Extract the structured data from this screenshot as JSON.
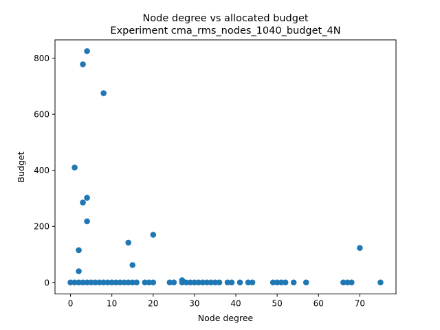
{
  "chart_data": {
    "type": "scatter",
    "title": "Node degree vs allocated budget",
    "subtitle": "Experiment cma_rms_nodes_1040_budget_4N",
    "xlabel": "Node degree",
    "ylabel": "Budget",
    "xlim": [
      -3.75,
      78.75
    ],
    "ylim": [
      -41.2,
      865.2
    ],
    "xticks": [
      0,
      10,
      20,
      30,
      40,
      50,
      60,
      70
    ],
    "yticks": [
      0,
      200,
      400,
      600,
      800
    ],
    "grid": false,
    "marker_color": "#1f77b4",
    "series": [
      {
        "points": [
          [
            0,
            0
          ],
          [
            1,
            0
          ],
          [
            1,
            410
          ],
          [
            2,
            0
          ],
          [
            2,
            40
          ],
          [
            2,
            115
          ],
          [
            3,
            0
          ],
          [
            3,
            285
          ],
          [
            3,
            778
          ],
          [
            4,
            0
          ],
          [
            4,
            218
          ],
          [
            4,
            302
          ],
          [
            4,
            825
          ],
          [
            5,
            0
          ],
          [
            6,
            0
          ],
          [
            7,
            0
          ],
          [
            8,
            0
          ],
          [
            8,
            675
          ],
          [
            9,
            0
          ],
          [
            10,
            0
          ],
          [
            11,
            0
          ],
          [
            12,
            0
          ],
          [
            13,
            0
          ],
          [
            14,
            0
          ],
          [
            14,
            142
          ],
          [
            15,
            0
          ],
          [
            15,
            62
          ],
          [
            16,
            0
          ],
          [
            18,
            0
          ],
          [
            19,
            0
          ],
          [
            20,
            0
          ],
          [
            20,
            170
          ],
          [
            24,
            0
          ],
          [
            25,
            0
          ],
          [
            27,
            0
          ],
          [
            27,
            8
          ],
          [
            28,
            0
          ],
          [
            29,
            0
          ],
          [
            30,
            0
          ],
          [
            31,
            0
          ],
          [
            32,
            0
          ],
          [
            33,
            0
          ],
          [
            34,
            0
          ],
          [
            35,
            0
          ],
          [
            36,
            0
          ],
          [
            38,
            0
          ],
          [
            39,
            0
          ],
          [
            41,
            0
          ],
          [
            43,
            0
          ],
          [
            44,
            0
          ],
          [
            49,
            0
          ],
          [
            50,
            0
          ],
          [
            51,
            0
          ],
          [
            52,
            0
          ],
          [
            54,
            0
          ],
          [
            57,
            0
          ],
          [
            66,
            0
          ],
          [
            67,
            0
          ],
          [
            68,
            0
          ],
          [
            70,
            123
          ],
          [
            75,
            0
          ]
        ]
      }
    ]
  }
}
